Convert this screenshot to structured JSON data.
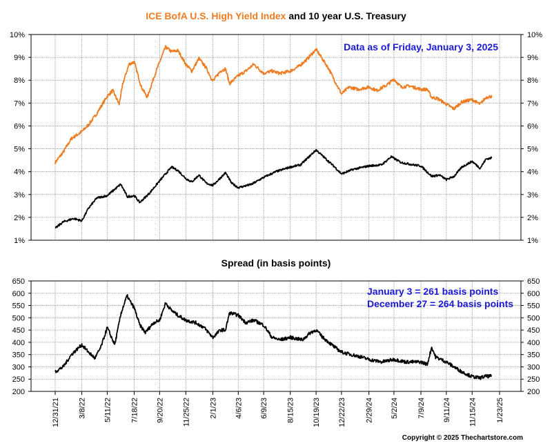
{
  "header": {
    "title_hy": "ICE BofA U.S. High Yield Index",
    "title_rest": " and 10 year U.S. Treasury",
    "data_note": "Data as of Friday, January 3, 2025",
    "copyright": "Copyright © 2025 Thechartstore.com"
  },
  "colors": {
    "high_yield": "#f07c22",
    "treasury": "#000000",
    "spread": "#000000",
    "annotation": "#1a1ad6",
    "grid": "#8a8a8a"
  },
  "chart_data": [
    {
      "type": "line",
      "title": "ICE BofA U.S. High Yield Index and 10 year U.S. Treasury",
      "ylim": [
        1,
        10
      ],
      "yticks": [
        "1%",
        "2%",
        "3%",
        "4%",
        "5%",
        "6%",
        "7%",
        "8%",
        "9%",
        "10%"
      ],
      "grid": true,
      "series": [
        {
          "name": "ICE BofA U.S. High Yield Index",
          "color": "#f07c22",
          "points": [
            [
              "2021-12-31",
              4.4
            ],
            [
              "2022-01-20",
              4.85
            ],
            [
              "2022-02-10",
              5.45
            ],
            [
              "2022-03-08",
              5.75
            ],
            [
              "2022-03-25",
              6.05
            ],
            [
              "2022-04-15",
              6.55
            ],
            [
              "2022-05-11",
              7.3
            ],
            [
              "2022-05-25",
              7.55
            ],
            [
              "2022-06-10",
              6.95
            ],
            [
              "2022-06-20",
              7.9
            ],
            [
              "2022-07-05",
              8.7
            ],
            [
              "2022-07-18",
              8.8
            ],
            [
              "2022-08-05",
              7.7
            ],
            [
              "2022-08-20",
              7.25
            ],
            [
              "2022-09-05",
              8.1
            ],
            [
              "2022-09-20",
              8.8
            ],
            [
              "2022-10-05",
              9.45
            ],
            [
              "2022-10-20",
              9.25
            ],
            [
              "2022-11-05",
              9.3
            ],
            [
              "2022-11-25",
              8.7
            ],
            [
              "2022-12-10",
              8.4
            ],
            [
              "2022-12-28",
              8.95
            ],
            [
              "2023-01-15",
              8.55
            ],
            [
              "2023-02-01",
              7.95
            ],
            [
              "2023-02-20",
              8.4
            ],
            [
              "2023-03-05",
              8.5
            ],
            [
              "2023-03-15",
              7.85
            ],
            [
              "2023-04-06",
              8.2
            ],
            [
              "2023-04-25",
              8.4
            ],
            [
              "2023-05-15",
              8.7
            ],
            [
              "2023-06-09",
              8.3
            ],
            [
              "2023-06-30",
              8.4
            ],
            [
              "2023-07-20",
              8.3
            ],
            [
              "2023-08-15",
              8.4
            ],
            [
              "2023-09-05",
              8.6
            ],
            [
              "2023-09-25",
              8.9
            ],
            [
              "2023-10-19",
              9.35
            ],
            [
              "2023-11-05",
              8.9
            ],
            [
              "2023-11-20",
              8.5
            ],
            [
              "2023-12-10",
              7.8
            ],
            [
              "2023-12-22",
              7.4
            ],
            [
              "2024-01-10",
              7.7
            ],
            [
              "2024-02-01",
              7.6
            ],
            [
              "2024-02-29",
              7.7
            ],
            [
              "2024-03-20",
              7.55
            ],
            [
              "2024-04-15",
              7.8
            ],
            [
              "2024-05-02",
              8.05
            ],
            [
              "2024-05-20",
              7.7
            ],
            [
              "2024-06-10",
              7.75
            ],
            [
              "2024-07-09",
              7.6
            ],
            [
              "2024-07-25",
              7.6
            ],
            [
              "2024-08-05",
              7.25
            ],
            [
              "2024-08-20",
              7.2
            ],
            [
              "2024-09-11",
              6.95
            ],
            [
              "2024-09-30",
              6.75
            ],
            [
              "2024-10-20",
              7.05
            ],
            [
              "2024-11-15",
              7.15
            ],
            [
              "2024-12-05",
              6.95
            ],
            [
              "2024-12-20",
              7.25
            ],
            [
              "2025-01-03",
              7.3
            ]
          ]
        },
        {
          "name": "10 year U.S. Treasury",
          "color": "#000000",
          "points": [
            [
              "2021-12-31",
              1.52
            ],
            [
              "2022-01-20",
              1.8
            ],
            [
              "2022-02-15",
              1.95
            ],
            [
              "2022-03-08",
              1.85
            ],
            [
              "2022-03-25",
              2.4
            ],
            [
              "2022-04-15",
              2.85
            ],
            [
              "2022-05-11",
              2.95
            ],
            [
              "2022-06-14",
              3.45
            ],
            [
              "2022-07-01",
              2.9
            ],
            [
              "2022-07-18",
              2.95
            ],
            [
              "2022-08-01",
              2.65
            ],
            [
              "2022-08-25",
              3.05
            ],
            [
              "2022-09-20",
              3.6
            ],
            [
              "2022-10-20",
              4.2
            ],
            [
              "2022-11-05",
              4.05
            ],
            [
              "2022-11-25",
              3.7
            ],
            [
              "2022-12-10",
              3.55
            ],
            [
              "2022-12-28",
              3.85
            ],
            [
              "2023-01-15",
              3.5
            ],
            [
              "2023-02-01",
              3.4
            ],
            [
              "2023-03-05",
              3.95
            ],
            [
              "2023-03-20",
              3.5
            ],
            [
              "2023-04-06",
              3.3
            ],
            [
              "2023-05-10",
              3.45
            ],
            [
              "2023-06-09",
              3.75
            ],
            [
              "2023-07-10",
              4.0
            ],
            [
              "2023-08-15",
              4.2
            ],
            [
              "2023-09-10",
              4.3
            ],
            [
              "2023-10-19",
              4.95
            ],
            [
              "2023-11-10",
              4.6
            ],
            [
              "2023-12-05",
              4.2
            ],
            [
              "2023-12-22",
              3.9
            ],
            [
              "2024-01-20",
              4.1
            ],
            [
              "2024-02-29",
              4.25
            ],
            [
              "2024-04-01",
              4.3
            ],
            [
              "2024-04-25",
              4.65
            ],
            [
              "2024-05-20",
              4.4
            ],
            [
              "2024-06-20",
              4.3
            ],
            [
              "2024-07-09",
              4.25
            ],
            [
              "2024-08-05",
              3.8
            ],
            [
              "2024-08-25",
              3.85
            ],
            [
              "2024-09-11",
              3.65
            ],
            [
              "2024-10-01",
              3.8
            ],
            [
              "2024-10-20",
              4.2
            ],
            [
              "2024-11-15",
              4.45
            ],
            [
              "2024-12-05",
              4.15
            ],
            [
              "2024-12-20",
              4.55
            ],
            [
              "2025-01-03",
              4.6
            ]
          ]
        }
      ]
    },
    {
      "type": "line",
      "title": "Spread (in basis points)",
      "ylim": [
        200,
        650
      ],
      "yticks": [
        "200",
        "250",
        "300",
        "350",
        "400",
        "450",
        "500",
        "550",
        "600",
        "650"
      ],
      "grid": true,
      "annotations": [
        "January 3 = 261 basis points",
        "December 27 = 264 basis points"
      ],
      "series": [
        {
          "name": "Spread",
          "color": "#000000",
          "points": [
            [
              "2021-12-31",
              280
            ],
            [
              "2022-01-20",
              300
            ],
            [
              "2022-02-10",
              350
            ],
            [
              "2022-03-08",
              390
            ],
            [
              "2022-03-25",
              360
            ],
            [
              "2022-04-10",
              335
            ],
            [
              "2022-04-25",
              380
            ],
            [
              "2022-05-11",
              460
            ],
            [
              "2022-05-30",
              390
            ],
            [
              "2022-06-15",
              520
            ],
            [
              "2022-06-30",
              590
            ],
            [
              "2022-07-10",
              560
            ],
            [
              "2022-07-18",
              540
            ],
            [
              "2022-08-01",
              470
            ],
            [
              "2022-08-15",
              440
            ],
            [
              "2022-09-05",
              480
            ],
            [
              "2022-09-20",
              490
            ],
            [
              "2022-10-05",
              560
            ],
            [
              "2022-10-20",
              530
            ],
            [
              "2022-11-05",
              510
            ],
            [
              "2022-11-25",
              490
            ],
            [
              "2022-12-20",
              480
            ],
            [
              "2023-01-10",
              460
            ],
            [
              "2023-02-01",
              420
            ],
            [
              "2023-02-20",
              450
            ],
            [
              "2023-03-05",
              450
            ],
            [
              "2023-03-15",
              520
            ],
            [
              "2023-04-06",
              510
            ],
            [
              "2023-04-25",
              480
            ],
            [
              "2023-05-15",
              490
            ],
            [
              "2023-06-09",
              470
            ],
            [
              "2023-06-30",
              420
            ],
            [
              "2023-07-20",
              410
            ],
            [
              "2023-08-15",
              420
            ],
            [
              "2023-09-15",
              410
            ],
            [
              "2023-10-05",
              440
            ],
            [
              "2023-10-19",
              450
            ],
            [
              "2023-11-05",
              420
            ],
            [
              "2023-11-20",
              400
            ],
            [
              "2023-12-05",
              380
            ],
            [
              "2023-12-22",
              360
            ],
            [
              "2024-01-15",
              350
            ],
            [
              "2024-02-10",
              340
            ],
            [
              "2024-02-29",
              330
            ],
            [
              "2024-04-01",
              320
            ],
            [
              "2024-05-02",
              330
            ],
            [
              "2024-06-01",
              320
            ],
            [
              "2024-07-09",
              320
            ],
            [
              "2024-07-25",
              310
            ],
            [
              "2024-08-05",
              380
            ],
            [
              "2024-08-15",
              340
            ],
            [
              "2024-09-11",
              320
            ],
            [
              "2024-09-30",
              300
            ],
            [
              "2024-10-20",
              280
            ],
            [
              "2024-11-15",
              260
            ],
            [
              "2024-12-05",
              255
            ],
            [
              "2024-12-20",
              262
            ],
            [
              "2025-01-03",
              261
            ]
          ]
        }
      ]
    }
  ],
  "x_axis": {
    "ticks": [
      {
        "date": "2021-12-31",
        "label": "12/31/21"
      },
      {
        "date": "2022-03-08",
        "label": "3/8/22"
      },
      {
        "date": "2022-05-11",
        "label": "5/11/22"
      },
      {
        "date": "2022-07-18",
        "label": "7/18/22"
      },
      {
        "date": "2022-09-20",
        "label": "9/20/22"
      },
      {
        "date": "2022-11-25",
        "label": "11/25/22"
      },
      {
        "date": "2023-02-01",
        "label": "2/1/23"
      },
      {
        "date": "2023-04-06",
        "label": "4/6/23"
      },
      {
        "date": "2023-06-09",
        "label": "6/9/23"
      },
      {
        "date": "2023-08-15",
        "label": "8/15/23"
      },
      {
        "date": "2023-10-19",
        "label": "10/19/23"
      },
      {
        "date": "2023-12-22",
        "label": "12/22/23"
      },
      {
        "date": "2024-02-29",
        "label": "2/29/24"
      },
      {
        "date": "2024-05-02",
        "label": "5/2/24"
      },
      {
        "date": "2024-07-09",
        "label": "7/9/24"
      },
      {
        "date": "2024-09-11",
        "label": "9/11/24"
      },
      {
        "date": "2024-11-15",
        "label": "11/15/24"
      },
      {
        "date": "2025-01-23",
        "label": "1/23/25"
      }
    ]
  }
}
